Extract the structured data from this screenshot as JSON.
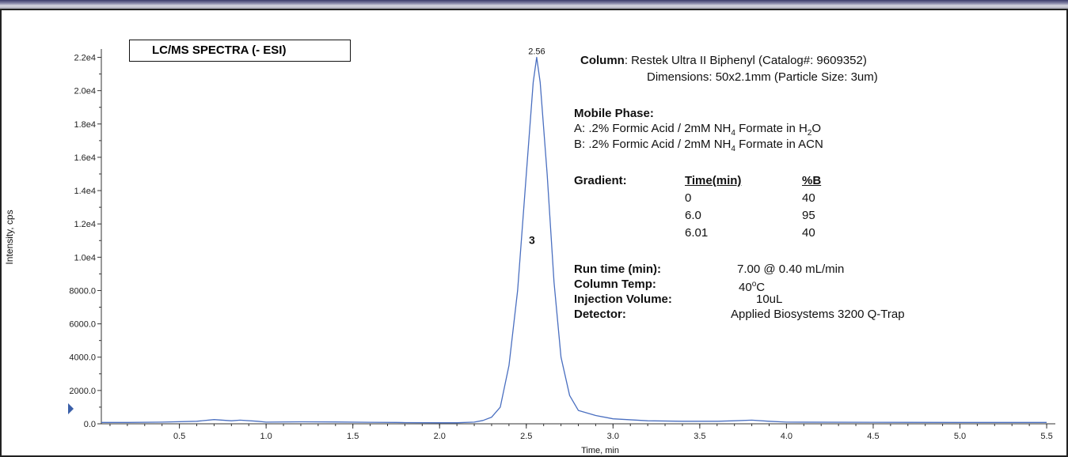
{
  "chart_data": {
    "type": "line",
    "title": "LC/MS SPECTRA (- ESI)",
    "xlabel": "Time, min",
    "ylabel": "Intensity, cps",
    "xlim": [
      0.05,
      5.55
    ],
    "ylim": [
      0,
      22500
    ],
    "x_ticks": [
      0.5,
      1.0,
      1.5,
      2.0,
      2.5,
      3.0,
      3.5,
      4.0,
      4.5,
      5.0,
      5.5
    ],
    "x_tick_labels": [
      "0.5",
      "1.0",
      "1.5",
      "2.0",
      "2.5",
      "3.0",
      "3.5",
      "4.0",
      "4.5",
      "5.0",
      "5.5"
    ],
    "y_ticks": [
      0,
      2000,
      4000,
      6000,
      8000,
      10000,
      12000,
      14000,
      16000,
      18000,
      20000,
      22000
    ],
    "y_tick_labels": [
      "0.0",
      "2000.0",
      "4000.0",
      "6000.0",
      "8000.0",
      "1.0e4",
      "1.2e4",
      "1.4e4",
      "1.6e4",
      "1.8e4",
      "2.0e4",
      "2.2e4"
    ],
    "grid": false,
    "series": [
      {
        "color": "#4a6fc0",
        "x": [
          0.0,
          0.2,
          0.4,
          0.6,
          0.7,
          0.8,
          0.85,
          0.95,
          1.0,
          1.2,
          1.4,
          1.6,
          1.75,
          1.8,
          2.0,
          2.1,
          2.2,
          2.25,
          2.3,
          2.35,
          2.4,
          2.45,
          2.5,
          2.54,
          2.56,
          2.58,
          2.62,
          2.66,
          2.7,
          2.75,
          2.8,
          2.9,
          3.0,
          3.2,
          3.4,
          3.6,
          3.7,
          3.8,
          3.9,
          4.0,
          4.5,
          5.0,
          5.5
        ],
        "y": [
          80,
          80,
          100,
          150,
          250,
          180,
          220,
          150,
          100,
          120,
          110,
          90,
          80,
          70,
          60,
          60,
          100,
          200,
          400,
          1000,
          3500,
          8000,
          15000,
          20500,
          22000,
          20500,
          15000,
          8500,
          4000,
          1700,
          800,
          500,
          300,
          180,
          150,
          150,
          180,
          220,
          150,
          100,
          90,
          80,
          80
        ]
      }
    ],
    "annotations": [
      {
        "x": 2.56,
        "y": 22000,
        "text": "2.56"
      },
      {
        "x": 2.56,
        "y": 10800,
        "text": "3"
      }
    ]
  },
  "info": {
    "column_label": "Column",
    "column_value": ": Restek Ultra II Biphenyl (Catalog#:  9609352)",
    "dimensions": "Dimensions: 50x2.1mm (Particle Size: 3um)",
    "mobile_phase_label": "Mobile Phase:",
    "mp_a_prefix": "A: .2% Formic Acid / 2mM NH",
    "mp_a_sub4": "4",
    "mp_a_mid": " Formate in H",
    "mp_a_sub2": "2",
    "mp_a_suffix": "O",
    "mp_b_prefix": "B: .2% Formic Acid / 2mM NH",
    "mp_b_sub4": "4",
    "mp_b_suffix": " Formate in ACN",
    "gradient_label": "Gradient:",
    "time_header": "Time(min)",
    "b_header": "%B",
    "gradient_times": [
      "0",
      "6.0",
      "6.01"
    ],
    "gradient_b": [
      "40",
      "95",
      "40"
    ],
    "run_time_label": "Run time (min):",
    "run_time_value": "7.00 @ 0.40 mL/min",
    "column_temp_label": "Column Temp:",
    "column_temp_value": "40",
    "column_temp_sup": "o",
    "column_temp_unit": "C",
    "injection_label": "Injection Volume:",
    "injection_value": "10uL",
    "detector_label": "Detector:",
    "detector_value": "Applied Biosystems 3200 Q-Trap"
  },
  "colors": {
    "line": "#4a6fc0",
    "frame": "#222222",
    "top_bar": "#5a5a8a"
  }
}
